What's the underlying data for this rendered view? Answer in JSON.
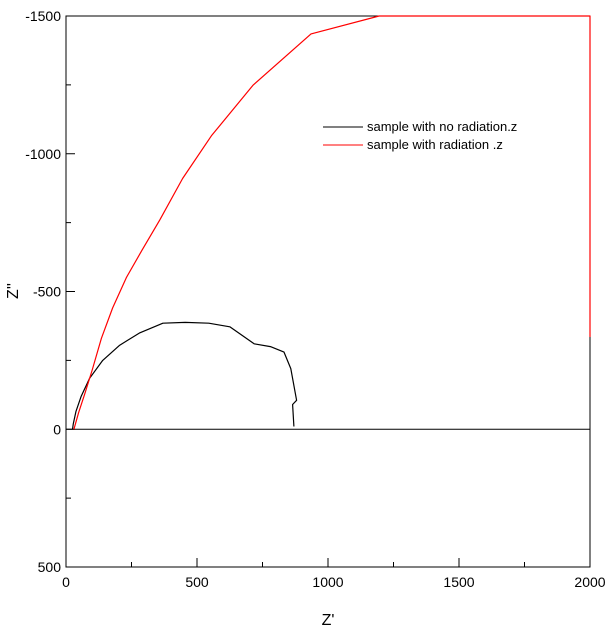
{
  "chart_data": {
    "type": "line",
    "xlabel": "Z'",
    "ylabel": "Z''",
    "xlim": [
      0,
      2000
    ],
    "ylim": [
      500,
      -1500
    ],
    "x_ticks": [
      0,
      500,
      1000,
      1500,
      2000
    ],
    "x_tick_labels": [
      "0",
      "500",
      "1000",
      "1500",
      "2000"
    ],
    "y_ticks": [
      -1500,
      -1000,
      -500,
      0,
      500
    ],
    "y_tick_labels": [
      "-1500",
      "-1000",
      "-500",
      "0",
      "500"
    ],
    "grid": false,
    "legend_position": "top-right",
    "series": [
      {
        "name": "sample with no radiation.z",
        "color": "#000000",
        "x": [
          870,
          865,
          880,
          858,
          832,
          780,
          718,
          625,
          545,
          455,
          370,
          282,
          205,
          140,
          90,
          58,
          38,
          28,
          25
        ],
        "y": [
          -10,
          -90,
          -105,
          -220,
          -280,
          -300,
          -310,
          -372,
          -385,
          -388,
          -385,
          -350,
          -305,
          -250,
          -185,
          -120,
          -65,
          -20,
          0
        ]
      },
      {
        "name": "sample with radiation .z",
        "color": "#ff0000",
        "x": [
          30,
          48,
          72,
          100,
          135,
          178,
          230,
          290,
          358,
          445,
          555,
          715,
          935,
          1195,
          1600,
          2000,
          2000
        ],
        "y": [
          0,
          -60,
          -130,
          -215,
          -330,
          -440,
          -550,
          -650,
          -760,
          -910,
          -1065,
          -1250,
          -1435,
          -1500,
          -1500,
          -1500,
          -335
        ]
      }
    ]
  }
}
